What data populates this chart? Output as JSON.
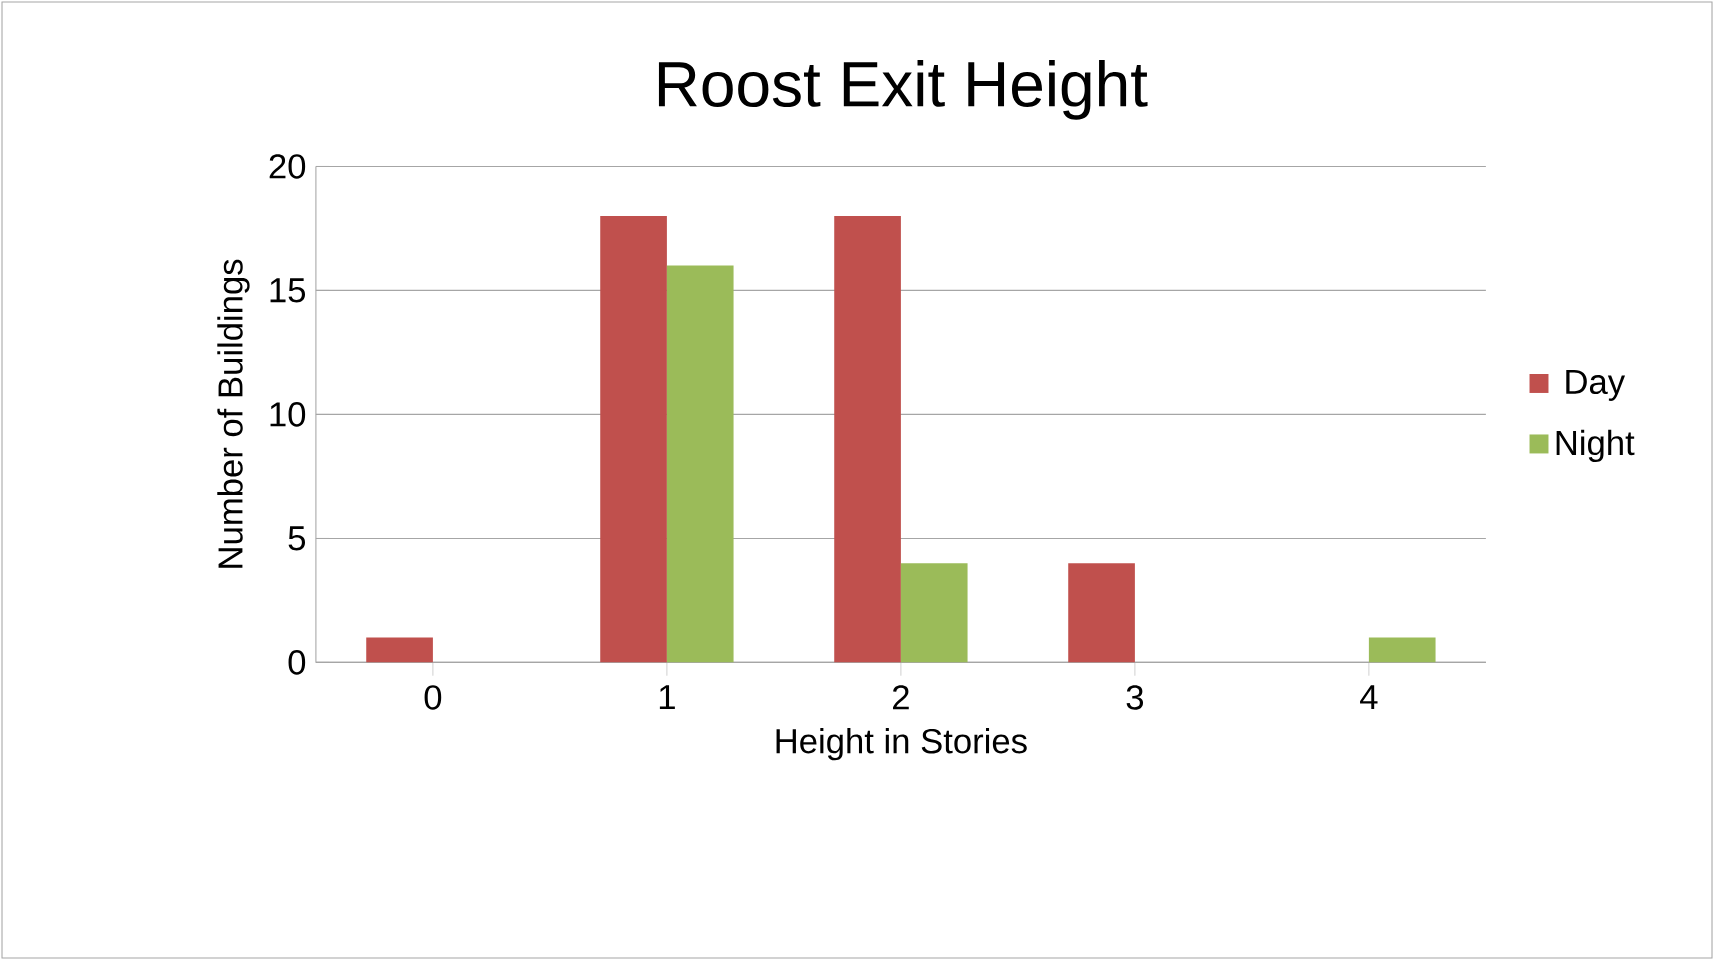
{
  "chart_data": {
    "type": "bar",
    "title": "Roost Exit Height",
    "xlabel": "Height in Stories",
    "ylabel": "Number of Buildings",
    "categories": [
      "0",
      "1",
      "2",
      "3",
      "4"
    ],
    "series": [
      {
        "name": "Day",
        "color": "#c0504d",
        "values": [
          1,
          18,
          18,
          4,
          0
        ]
      },
      {
        "name": "Night",
        "color": "#9bbb59",
        "values": [
          0,
          16,
          4,
          0,
          1
        ]
      }
    ],
    "ylim": [
      0,
      20
    ],
    "yticks": [
      0,
      5,
      10,
      15,
      20
    ],
    "grid": "y",
    "legend": "right"
  }
}
